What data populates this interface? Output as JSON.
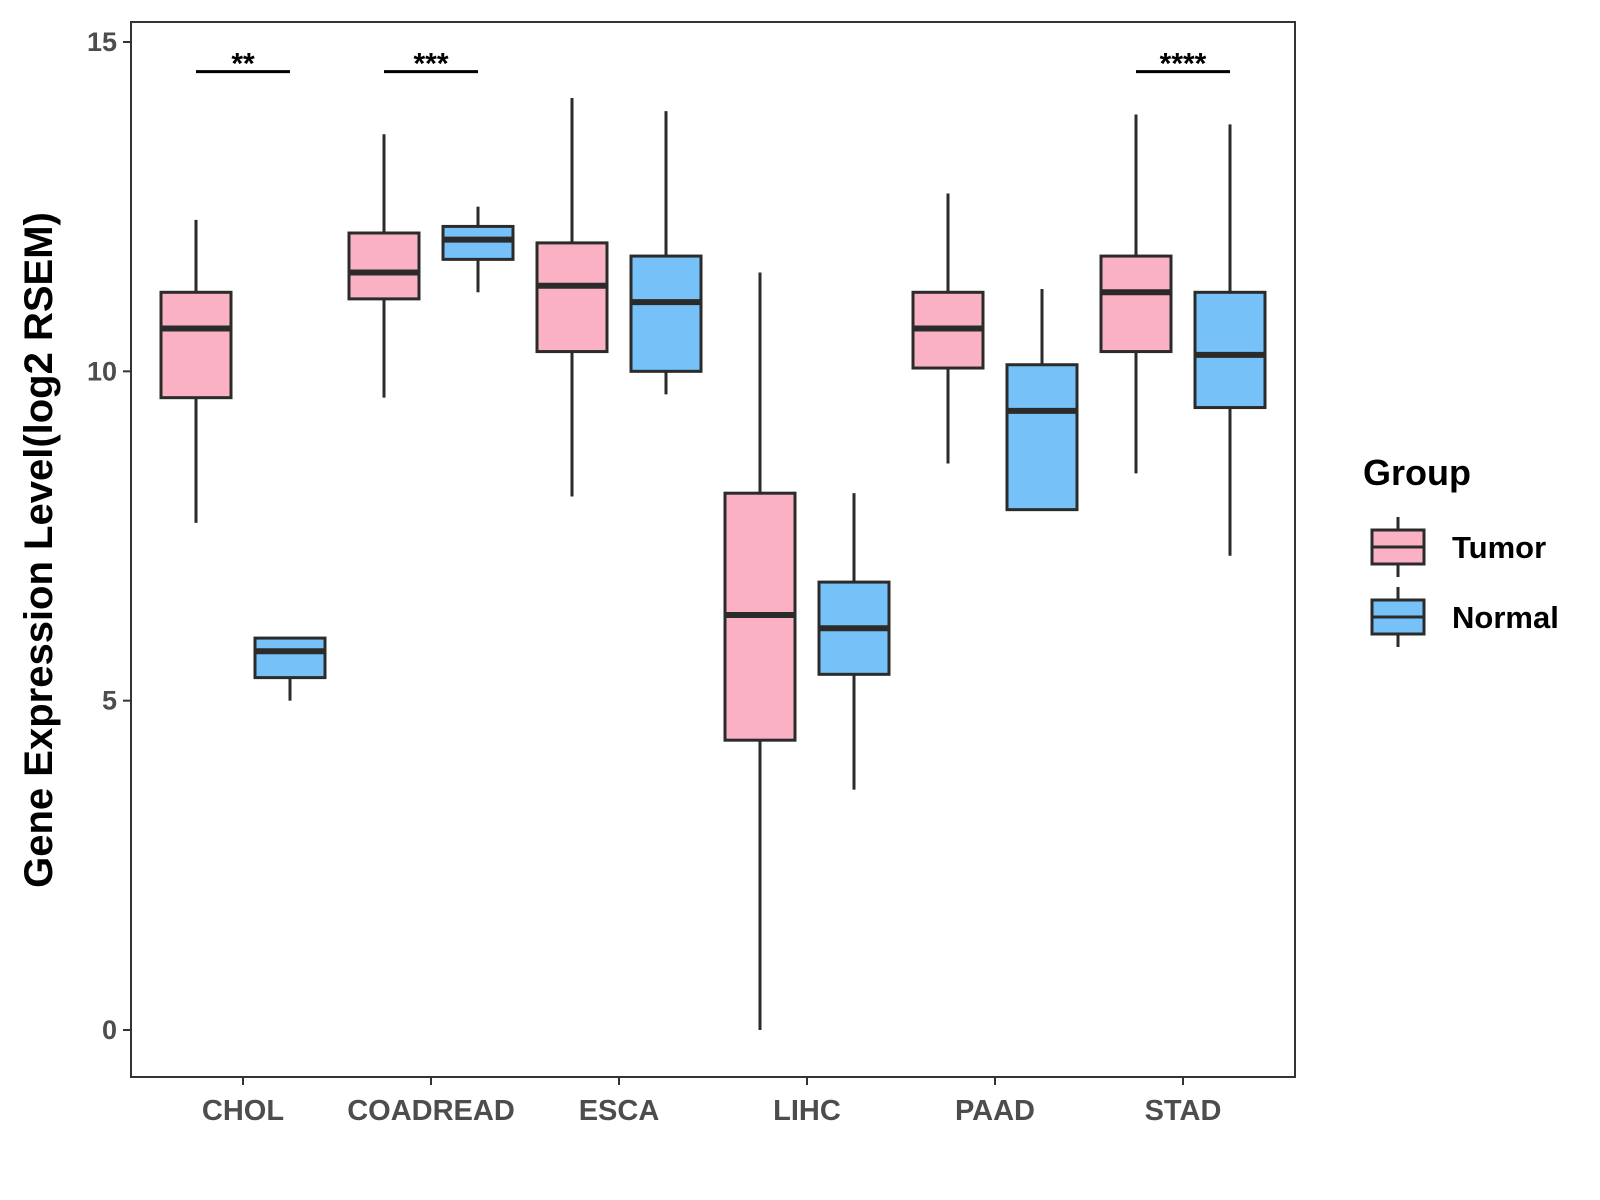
{
  "chart_data": {
    "type": "boxplot",
    "title": "",
    "xlabel": "",
    "ylabel": "Gene Expression Level(log2 RSEM)",
    "ylim": [
      -0.7,
      15.3
    ],
    "yticks": [
      0,
      5,
      10,
      15
    ],
    "grid": false,
    "legend_position": "right",
    "categories": [
      "CHOL",
      "COADREAD",
      "ESCA",
      "LIHC",
      "PAAD",
      "STAD"
    ],
    "legend": {
      "title": "Group",
      "entries": [
        {
          "name": "Tumor",
          "color": "#FAB1C3"
        },
        {
          "name": "Normal",
          "color": "#76C2F8"
        }
      ]
    },
    "series": [
      {
        "name": "Tumor",
        "color": "#FAB1C3",
        "boxes": [
          {
            "category": "CHOL",
            "whisker_low": 7.7,
            "q1": 9.6,
            "median": 10.65,
            "q3": 11.2,
            "whisker_high": 12.3
          },
          {
            "category": "COADREAD",
            "whisker_low": 9.6,
            "q1": 11.1,
            "median": 11.5,
            "q3": 12.1,
            "whisker_high": 13.6
          },
          {
            "category": "ESCA",
            "whisker_low": 8.1,
            "q1": 10.3,
            "median": 11.3,
            "q3": 11.95,
            "whisker_high": 14.15
          },
          {
            "category": "LIHC",
            "whisker_low": 0.0,
            "q1": 4.4,
            "median": 6.3,
            "q3": 8.15,
            "whisker_high": 11.5
          },
          {
            "category": "PAAD",
            "whisker_low": 8.6,
            "q1": 10.05,
            "median": 10.65,
            "q3": 11.2,
            "whisker_high": 12.7
          },
          {
            "category": "STAD",
            "whisker_low": 8.45,
            "q1": 10.3,
            "median": 11.2,
            "q3": 11.75,
            "whisker_high": 13.9
          }
        ]
      },
      {
        "name": "Normal",
        "color": "#76C2F8",
        "boxes": [
          {
            "category": "CHOL",
            "whisker_low": 5.0,
            "q1": 5.35,
            "median": 5.75,
            "q3": 5.95,
            "whisker_high": 5.95
          },
          {
            "category": "COADREAD",
            "whisker_low": 11.2,
            "q1": 11.7,
            "median": 12.0,
            "q3": 12.2,
            "whisker_high": 12.5
          },
          {
            "category": "ESCA",
            "whisker_low": 9.65,
            "q1": 10.0,
            "median": 11.05,
            "q3": 11.75,
            "whisker_high": 13.95
          },
          {
            "category": "LIHC",
            "whisker_low": 3.65,
            "q1": 5.4,
            "median": 6.1,
            "q3": 6.8,
            "whisker_high": 8.15
          },
          {
            "category": "PAAD",
            "whisker_low": 7.9,
            "q1": 7.9,
            "median": 9.4,
            "q3": 10.1,
            "whisker_high": 11.25
          },
          {
            "category": "STAD",
            "whisker_low": 7.2,
            "q1": 9.45,
            "median": 10.25,
            "q3": 11.2,
            "whisker_high": 13.75
          }
        ]
      }
    ],
    "annotations": [
      {
        "category": "CHOL",
        "label": "**",
        "y": 14.55
      },
      {
        "category": "COADREAD",
        "label": "***",
        "y": 14.55
      },
      {
        "category": "STAD",
        "label": "****",
        "y": 14.55
      }
    ]
  }
}
